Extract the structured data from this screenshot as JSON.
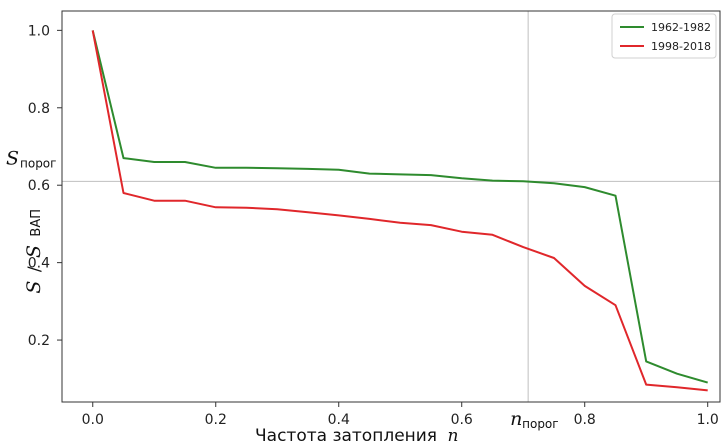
{
  "chart_data": {
    "type": "line",
    "title": "",
    "xlabel": "Частота затопления",
    "xlabel_var": "n",
    "ylabel": {
      "s": "S",
      "slash": "/",
      "S": "S",
      "sub": "ВАП"
    },
    "xlim": [
      -0.05,
      1.02
    ],
    "ylim": [
      0.04,
      1.05
    ],
    "xticks": [
      0.0,
      0.2,
      0.4,
      0.6,
      0.8,
      1.0
    ],
    "xtick_labels": [
      "0.0",
      "0.2",
      "0.4",
      "0.6",
      "0.8",
      "1.0"
    ],
    "yticks": [
      0.2,
      0.4,
      0.6,
      0.8,
      1.0
    ],
    "ytick_labels": [
      "0.2",
      "0.4",
      "0.6",
      "0.8",
      "1.0"
    ],
    "grid": false,
    "legend_position": "top-right",
    "threshold": {
      "x": 0.708,
      "y": 0.61,
      "x_label_var": "n",
      "x_label_sub": "порог",
      "y_label_var": "S",
      "y_label_sub": "порог",
      "color": "#bfbfbf"
    },
    "series": [
      {
        "name": "1962-1982",
        "color": "#2e8b2e",
        "x": [
          0.0,
          0.05,
          0.1,
          0.15,
          0.2,
          0.25,
          0.3,
          0.35,
          0.4,
          0.45,
          0.5,
          0.55,
          0.6,
          0.65,
          0.7,
          0.75,
          0.8,
          0.85,
          0.9,
          0.95,
          1.0
        ],
        "y": [
          1.0,
          0.67,
          0.66,
          0.66,
          0.645,
          0.645,
          0.644,
          0.642,
          0.64,
          0.63,
          0.628,
          0.626,
          0.618,
          0.612,
          0.61,
          0.605,
          0.595,
          0.573,
          0.145,
          0.113,
          0.09
        ]
      },
      {
        "name": "1998-2018",
        "color": "#e0272b",
        "x": [
          0.0,
          0.05,
          0.1,
          0.15,
          0.2,
          0.25,
          0.3,
          0.35,
          0.4,
          0.45,
          0.5,
          0.55,
          0.6,
          0.65,
          0.7,
          0.75,
          0.8,
          0.85,
          0.9,
          0.95,
          1.0
        ],
        "y": [
          1.0,
          0.58,
          0.56,
          0.56,
          0.543,
          0.542,
          0.538,
          0.53,
          0.522,
          0.513,
          0.503,
          0.497,
          0.48,
          0.472,
          0.44,
          0.412,
          0.34,
          0.29,
          0.085,
          0.078,
          0.07
        ]
      }
    ]
  }
}
